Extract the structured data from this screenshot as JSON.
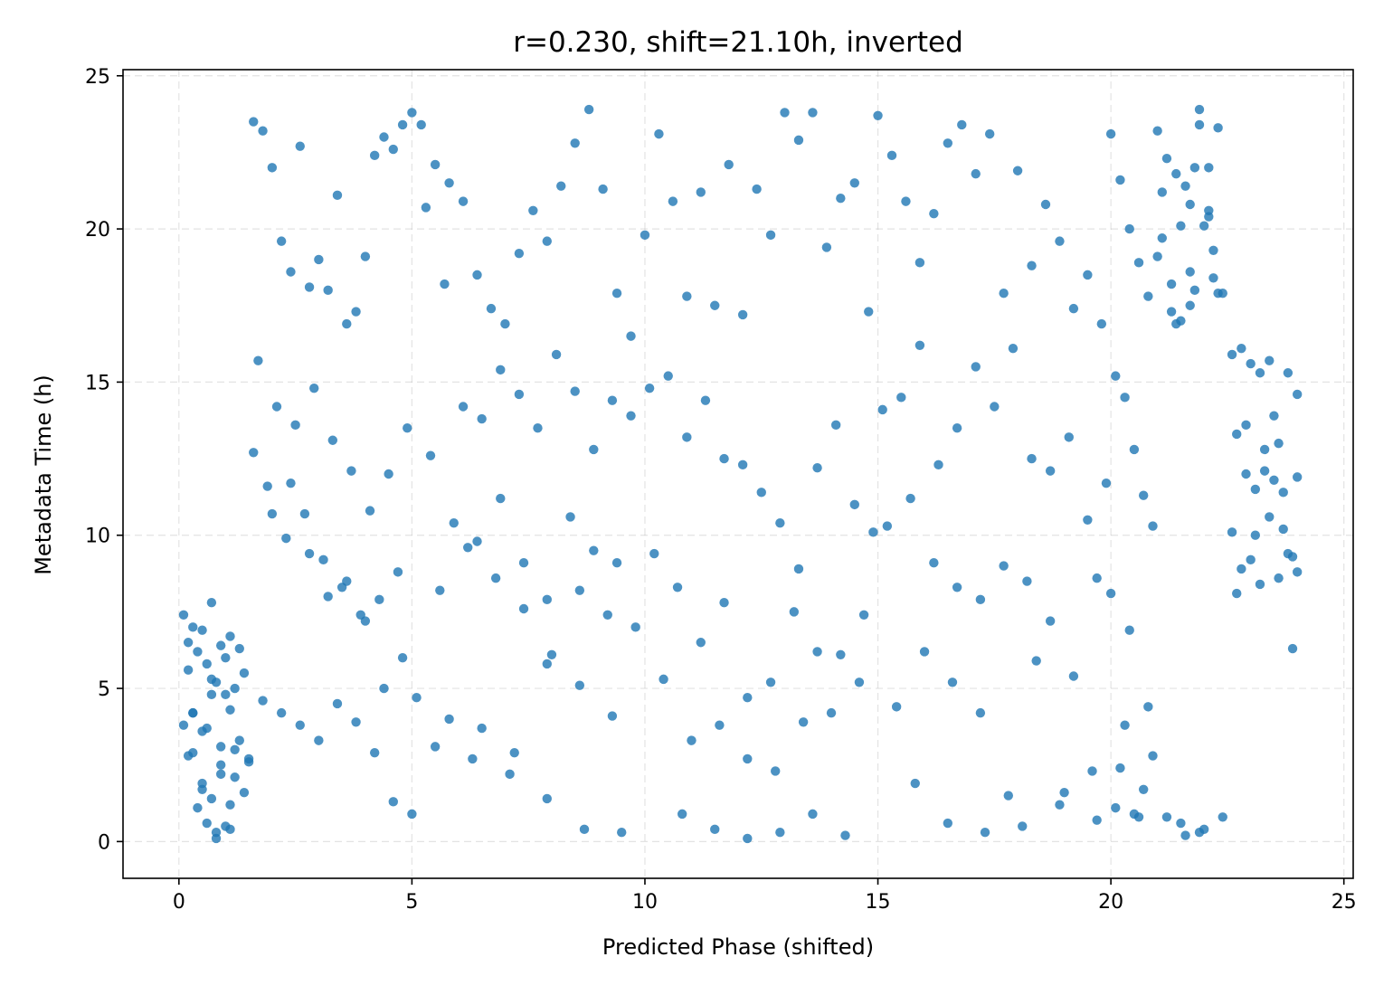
{
  "chart_data": {
    "type": "scatter",
    "title": "r=0.230, shift=21.10h, inverted",
    "xlabel": "Predicted Phase (shifted)",
    "ylabel": "Metadata Time (h)",
    "xlim": [
      -1.2,
      25.2
    ],
    "ylim": [
      -1.2,
      25.2
    ],
    "xticks": [
      0,
      5,
      10,
      15,
      20,
      25
    ],
    "yticks": [
      0,
      5,
      10,
      15,
      20,
      25
    ],
    "grid": true,
    "marker_color": "#1f77b4",
    "series": [
      {
        "x": [
          0.1,
          0.2,
          0.3,
          0.5,
          0.7,
          0.9,
          1.1,
          1.3,
          0.2,
          0.4,
          0.6,
          0.8,
          1.0,
          1.2,
          1.4,
          0.3,
          0.5,
          0.7,
          0.9,
          1.1,
          1.3,
          1.5,
          0.1,
          0.3,
          0.5,
          0.7,
          0.9,
          1.1,
          0.4,
          0.6,
          0.8,
          1.0,
          1.2,
          0.2,
          0.5,
          0.8,
          1.1,
          1.4,
          0.6,
          0.9,
          1.2,
          1.5,
          0.3,
          0.7,
          1.0,
          1.6,
          1.8,
          2.0,
          2.2,
          2.4,
          2.6,
          2.8,
          3.0,
          3.2,
          3.4,
          3.6,
          3.8,
          4.0,
          4.2,
          4.4,
          4.6,
          4.8,
          5.0,
          1.7,
          2.1,
          2.5,
          2.9,
          3.3,
          3.7,
          4.1,
          4.5,
          4.9,
          1.9,
          2.3,
          2.7,
          3.1,
          3.5,
          3.9,
          4.3,
          4.7,
          1.6,
          2.0,
          2.4,
          2.8,
          3.2,
          3.6,
          4.0,
          4.4,
          4.8,
          1.8,
          2.2,
          2.6,
          3.0,
          3.4,
          3.8,
          4.2,
          4.6,
          5.0,
          5.2,
          5.5,
          5.8,
          6.1,
          6.4,
          6.7,
          7.0,
          7.3,
          7.6,
          7.9,
          8.2,
          8.5,
          8.8,
          9.1,
          9.4,
          9.7,
          5.3,
          5.7,
          6.1,
          6.5,
          6.9,
          7.3,
          7.7,
          8.1,
          8.5,
          8.9,
          9.3,
          9.7,
          5.4,
          5.9,
          6.4,
          6.9,
          7.4,
          7.9,
          8.4,
          8.9,
          9.4,
          5.6,
          6.2,
          6.8,
          7.4,
          8.0,
          8.6,
          9.2,
          9.8,
          5.1,
          5.8,
          6.5,
          7.2,
          7.9,
          8.6,
          9.3,
          5.5,
          6.3,
          7.1,
          7.9,
          8.7,
          9.5,
          10.0,
          10.3,
          10.6,
          10.9,
          11.2,
          11.5,
          11.8,
          12.1,
          12.4,
          12.7,
          13.0,
          13.3,
          13.6,
          13.9,
          14.2,
          14.5,
          14.8,
          10.1,
          10.5,
          10.9,
          11.3,
          11.7,
          12.1,
          12.5,
          12.9,
          13.3,
          13.7,
          14.1,
          14.5,
          14.9,
          10.2,
          10.7,
          11.2,
          11.7,
          12.2,
          12.7,
          13.2,
          13.7,
          14.2,
          14.7,
          10.4,
          11.0,
          11.6,
          12.2,
          12.8,
          13.4,
          14.0,
          14.6,
          10.8,
          11.5,
          12.2,
          12.9,
          13.6,
          14.3,
          15.0,
          15.3,
          15.6,
          15.9,
          16.2,
          16.5,
          16.8,
          17.1,
          17.4,
          17.7,
          18.0,
          18.3,
          18.6,
          18.9,
          19.2,
          19.5,
          19.8,
          15.1,
          15.5,
          15.9,
          16.3,
          16.7,
          17.1,
          17.5,
          17.9,
          18.3,
          18.7,
          19.1,
          19.5,
          19.9,
          15.2,
          15.7,
          16.2,
          16.7,
          17.2,
          17.7,
          18.2,
          18.7,
          19.2,
          19.7,
          15.4,
          16.0,
          16.6,
          17.2,
          17.8,
          18.4,
          19.0,
          19.6,
          15.8,
          16.5,
          17.3,
          18.1,
          18.9,
          19.7,
          20.0,
          20.2,
          20.4,
          20.6,
          20.8,
          20.1,
          20.3,
          20.5,
          20.7,
          20.9,
          20.0,
          20.4,
          20.8,
          20.2,
          20.6,
          20.1,
          20.5,
          20.9,
          20.3,
          20.7,
          21.0,
          21.2,
          21.4,
          21.6,
          21.8,
          22.0,
          22.2,
          22.4,
          21.1,
          21.3,
          21.5,
          21.7,
          21.9,
          22.1,
          22.3,
          21.0,
          21.4,
          21.8,
          22.2,
          21.2,
          21.6,
          22.0,
          22.4,
          21.5,
          21.9,
          22.3,
          21.1,
          21.7,
          22.1,
          21.3,
          21.7,
          22.1,
          21.5,
          21.9,
          22.6,
          22.8,
          23.0,
          23.2,
          23.4,
          23.6,
          23.8,
          24.0,
          22.7,
          22.9,
          23.1,
          23.3,
          23.5,
          23.7,
          23.9,
          22.6,
          23.0,
          23.4,
          23.8,
          22.8,
          23.2,
          23.6,
          24.0,
          22.7,
          23.1,
          23.5,
          23.9,
          22.9,
          23.3,
          23.7,
          24.0
        ],
        "y": [
          7.4,
          6.5,
          7.0,
          6.9,
          7.8,
          6.4,
          6.7,
          6.3,
          5.6,
          6.2,
          5.8,
          5.2,
          4.8,
          5.0,
          5.5,
          4.2,
          3.6,
          4.8,
          3.1,
          4.3,
          3.3,
          2.6,
          3.8,
          2.9,
          1.9,
          1.4,
          2.5,
          1.2,
          1.1,
          0.6,
          0.3,
          0.5,
          2.1,
          2.8,
          1.7,
          0.1,
          0.4,
          1.6,
          3.7,
          2.2,
          3.0,
          2.7,
          4.2,
          5.3,
          6.0,
          23.5,
          23.2,
          22.0,
          19.6,
          18.6,
          22.7,
          18.1,
          19.0,
          18.0,
          21.1,
          16.9,
          17.3,
          19.1,
          22.4,
          23.0,
          22.6,
          23.4,
          23.8,
          15.7,
          14.2,
          13.6,
          14.8,
          13.1,
          12.1,
          10.8,
          12.0,
          13.5,
          11.6,
          9.9,
          10.7,
          9.2,
          8.3,
          7.4,
          7.9,
          8.8,
          12.7,
          10.7,
          11.7,
          9.4,
          8.0,
          8.5,
          7.2,
          5.0,
          6.0,
          4.6,
          4.2,
          3.8,
          3.3,
          4.5,
          3.9,
          2.9,
          1.3,
          0.9,
          23.4,
          22.1,
          21.5,
          20.9,
          18.5,
          17.4,
          16.9,
          19.2,
          20.6,
          19.6,
          21.4,
          22.8,
          23.9,
          21.3,
          17.9,
          16.5,
          20.7,
          18.2,
          14.2,
          13.8,
          15.4,
          14.6,
          13.5,
          15.9,
          14.7,
          12.8,
          14.4,
          13.9,
          12.6,
          10.4,
          9.8,
          11.2,
          9.1,
          7.9,
          10.6,
          9.5,
          9.1,
          8.2,
          9.6,
          8.6,
          7.6,
          6.1,
          8.2,
          7.4,
          7.0,
          4.7,
          4.0,
          3.7,
          2.9,
          5.8,
          5.1,
          4.1,
          3.1,
          2.7,
          2.2,
          1.4,
          0.4,
          0.3,
          19.8,
          23.1,
          20.9,
          17.8,
          21.2,
          17.5,
          22.1,
          17.2,
          21.3,
          19.8,
          23.8,
          22.9,
          23.8,
          19.4,
          21.0,
          21.5,
          17.3,
          14.8,
          15.2,
          13.2,
          14.4,
          12.5,
          12.3,
          11.4,
          10.4,
          8.9,
          12.2,
          13.6,
          11.0,
          10.1,
          9.4,
          8.3,
          6.5,
          7.8,
          4.7,
          5.2,
          7.5,
          6.2,
          6.1,
          7.4,
          5.3,
          3.3,
          3.8,
          2.7,
          2.3,
          3.9,
          4.2,
          5.2,
          0.9,
          0.4,
          0.1,
          0.3,
          0.9,
          0.2,
          23.7,
          22.4,
          20.9,
          18.9,
          20.5,
          22.8,
          23.4,
          21.8,
          23.1,
          17.9,
          21.9,
          18.8,
          20.8,
          19.6,
          17.4,
          18.5,
          16.9,
          14.1,
          14.5,
          16.2,
          12.3,
          13.5,
          15.5,
          14.2,
          16.1,
          12.5,
          12.1,
          13.2,
          10.5,
          11.7,
          10.3,
          11.2,
          9.1,
          8.3,
          7.9,
          9.0,
          8.5,
          7.2,
          5.4,
          8.6,
          4.4,
          6.2,
          5.2,
          4.2,
          1.5,
          5.9,
          1.6,
          2.3,
          1.9,
          0.6,
          0.3,
          0.5,
          1.2,
          0.7,
          23.1,
          21.6,
          20.0,
          18.9,
          17.8,
          15.2,
          14.5,
          12.8,
          11.3,
          10.3,
          8.1,
          6.9,
          4.4,
          2.4,
          0.8,
          1.1,
          0.9,
          2.8,
          3.8,
          1.7,
          23.2,
          22.3,
          21.8,
          21.4,
          22.0,
          20.1,
          19.3,
          17.9,
          19.7,
          18.2,
          17.0,
          20.8,
          23.4,
          22.0,
          23.3,
          19.1,
          16.9,
          18.0,
          18.4,
          0.8,
          0.2,
          0.4,
          0.8,
          0.6,
          0.3,
          17.9,
          21.2,
          17.5,
          20.4,
          17.3,
          18.6,
          20.6,
          20.1,
          23.9,
          15.9,
          16.1,
          15.6,
          15.3,
          15.7,
          13.0,
          15.3,
          14.6,
          13.3,
          12.0,
          11.5,
          12.1,
          11.8,
          10.2,
          9.3,
          10.1,
          9.2,
          10.6,
          9.4,
          8.9,
          8.4,
          8.6,
          8.8,
          8.1,
          10.0,
          13.9,
          6.3,
          13.6,
          12.8,
          11.4,
          11.9
        ]
      }
    ]
  }
}
